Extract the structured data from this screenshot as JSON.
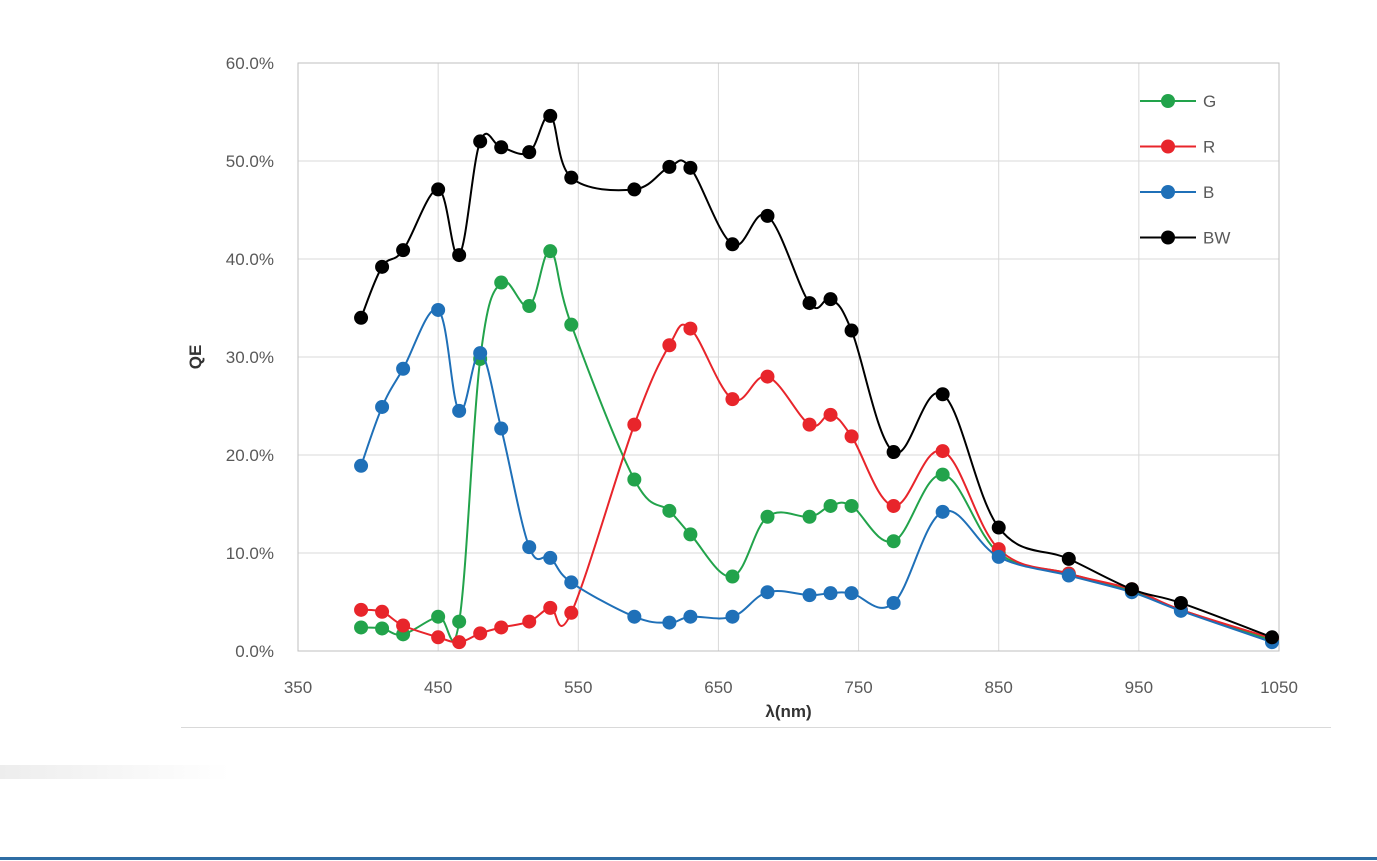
{
  "chart_data": {
    "type": "line",
    "title": "",
    "xlabel": "λ(nm)",
    "ylabel": "QE",
    "xlim": [
      350,
      1050
    ],
    "ylim": [
      0,
      0.6
    ],
    "x_ticks": [
      350,
      450,
      550,
      650,
      750,
      850,
      950,
      1050
    ],
    "x_tick_labels": [
      "350",
      "450",
      "550",
      "650",
      "750",
      "850",
      "950",
      "1050"
    ],
    "y_ticks": [
      0,
      0.1,
      0.2,
      0.3,
      0.4,
      0.5,
      0.6
    ],
    "y_tick_labels": [
      "0.0%",
      "10.0%",
      "20.0%",
      "30.0%",
      "40.0%",
      "50.0%",
      "60.0%"
    ],
    "grid": true,
    "legend_position": "top-right",
    "series": [
      {
        "name": "G",
        "color": "#22a34b",
        "points": [
          [
            395,
            0.024
          ],
          [
            410,
            0.023
          ],
          [
            425,
            0.017
          ],
          [
            450,
            0.035
          ],
          [
            465,
            0.03
          ],
          [
            480,
            0.298
          ],
          [
            495,
            0.376
          ],
          [
            515,
            0.352
          ],
          [
            530,
            0.408
          ],
          [
            545,
            0.333
          ],
          [
            590,
            0.175
          ],
          [
            615,
            0.143
          ],
          [
            630,
            0.119
          ],
          [
            660,
            0.076
          ],
          [
            685,
            0.137
          ],
          [
            715,
            0.137
          ],
          [
            730,
            0.148
          ],
          [
            745,
            0.148
          ],
          [
            775,
            0.112
          ],
          [
            810,
            0.18
          ],
          [
            850,
            0.1
          ],
          [
            900,
            0.079
          ],
          [
            945,
            0.061
          ],
          [
            980,
            0.042
          ],
          [
            1045,
            0.011
          ]
        ]
      },
      {
        "name": "R",
        "color": "#e8252b",
        "points": [
          [
            395,
            0.042
          ],
          [
            410,
            0.04
          ],
          [
            425,
            0.026
          ],
          [
            450,
            0.014
          ],
          [
            465,
            0.009
          ],
          [
            480,
            0.018
          ],
          [
            495,
            0.024
          ],
          [
            515,
            0.03
          ],
          [
            530,
            0.044
          ],
          [
            545,
            0.039
          ],
          [
            590,
            0.231
          ],
          [
            615,
            0.312
          ],
          [
            630,
            0.329
          ],
          [
            660,
            0.257
          ],
          [
            685,
            0.28
          ],
          [
            715,
            0.231
          ],
          [
            730,
            0.241
          ],
          [
            745,
            0.219
          ],
          [
            775,
            0.148
          ],
          [
            810,
            0.204
          ],
          [
            850,
            0.104
          ],
          [
            900,
            0.079
          ],
          [
            945,
            0.063
          ],
          [
            980,
            0.042
          ],
          [
            1045,
            0.013
          ]
        ]
      },
      {
        "name": "B",
        "color": "#1f70b8",
        "points": [
          [
            395,
            0.189
          ],
          [
            410,
            0.249
          ],
          [
            425,
            0.288
          ],
          [
            450,
            0.348
          ],
          [
            465,
            0.245
          ],
          [
            480,
            0.304
          ],
          [
            495,
            0.227
          ],
          [
            515,
            0.106
          ],
          [
            530,
            0.095
          ],
          [
            545,
            0.07
          ],
          [
            590,
            0.035
          ],
          [
            615,
            0.029
          ],
          [
            630,
            0.035
          ],
          [
            660,
            0.035
          ],
          [
            685,
            0.06
          ],
          [
            715,
            0.057
          ],
          [
            730,
            0.059
          ],
          [
            745,
            0.059
          ],
          [
            775,
            0.049
          ],
          [
            810,
            0.142
          ],
          [
            850,
            0.096
          ],
          [
            900,
            0.077
          ],
          [
            945,
            0.06
          ],
          [
            980,
            0.041
          ],
          [
            1045,
            0.009
          ]
        ]
      },
      {
        "name": "BW",
        "color": "#000000",
        "points": [
          [
            395,
            0.34
          ],
          [
            410,
            0.392
          ],
          [
            425,
            0.409
          ],
          [
            450,
            0.471
          ],
          [
            465,
            0.404
          ],
          [
            480,
            0.52
          ],
          [
            495,
            0.514
          ],
          [
            515,
            0.509
          ],
          [
            530,
            0.546
          ],
          [
            545,
            0.483
          ],
          [
            590,
            0.471
          ],
          [
            615,
            0.494
          ],
          [
            630,
            0.493
          ],
          [
            660,
            0.415
          ],
          [
            685,
            0.444
          ],
          [
            715,
            0.355
          ],
          [
            730,
            0.359
          ],
          [
            745,
            0.327
          ],
          [
            775,
            0.203
          ],
          [
            810,
            0.262
          ],
          [
            850,
            0.126
          ],
          [
            900,
            0.094
          ],
          [
            945,
            0.063
          ],
          [
            980,
            0.049
          ],
          [
            1045,
            0.014
          ]
        ]
      }
    ]
  }
}
